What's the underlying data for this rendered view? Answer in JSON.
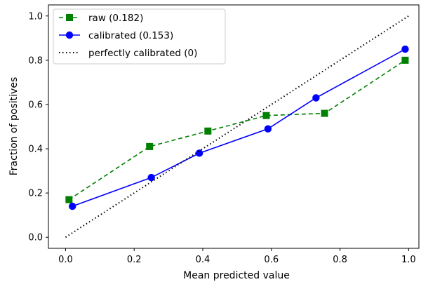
{
  "chart_data": {
    "type": "line",
    "title": "",
    "xlabel": "Mean predicted value",
    "ylabel": "Fraction of positives",
    "xlim": [
      -0.05,
      1.03
    ],
    "ylim": [
      -0.05,
      1.05
    ],
    "x_ticks": [
      0.0,
      0.2,
      0.4,
      0.6,
      0.8,
      1.0
    ],
    "x_tick_labels": [
      "0.0",
      "0.2",
      "0.4",
      "0.6",
      "0.8",
      "1.0"
    ],
    "y_ticks": [
      0.0,
      0.2,
      0.4,
      0.6,
      0.8,
      1.0
    ],
    "y_tick_labels": [
      "0.0",
      "0.2",
      "0.4",
      "0.6",
      "0.8",
      "1.0"
    ],
    "grid": false,
    "legend_position": "top-left",
    "series": [
      {
        "name": "raw (0.182)",
        "color": "#008000",
        "line_style": "dashed",
        "marker": "square",
        "x": [
          0.01,
          0.245,
          0.415,
          0.585,
          0.755,
          0.99
        ],
        "y": [
          0.17,
          0.41,
          0.48,
          0.55,
          0.56,
          0.8
        ]
      },
      {
        "name": "calibrated (0.153)",
        "color": "#0000ff",
        "line_style": "solid",
        "marker": "circle",
        "x": [
          0.02,
          0.25,
          0.39,
          0.59,
          0.73,
          0.99
        ],
        "y": [
          0.14,
          0.27,
          0.38,
          0.49,
          0.63,
          0.85
        ]
      },
      {
        "name": "perfectly calibrated (0)",
        "color": "#000000",
        "line_style": "dotted",
        "marker": "none",
        "x": [
          0,
          1
        ],
        "y": [
          0,
          1
        ]
      }
    ]
  }
}
